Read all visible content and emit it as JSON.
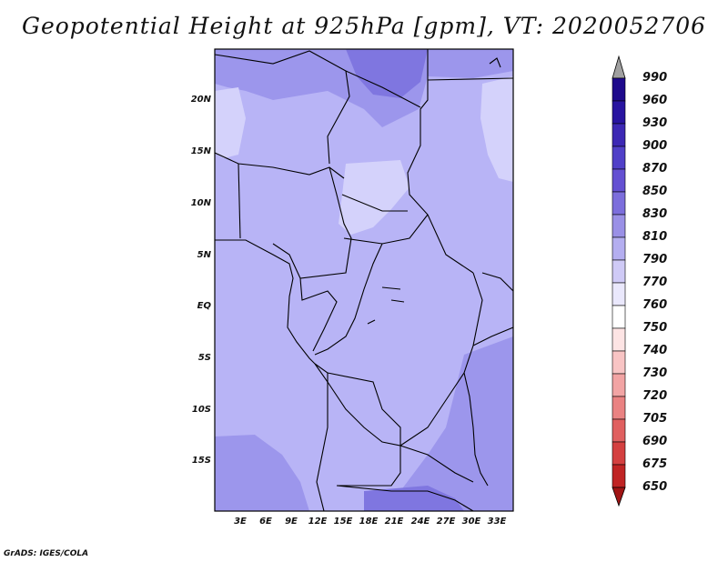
{
  "title": "Geopotential Height at 925hPa [gpm], VT: 2020052706",
  "footer": "GrADS: IGES/COLA",
  "latitude_labels": [
    "20N",
    "15N",
    "10N",
    "5N",
    "EQ",
    "5S",
    "10S",
    "15S"
  ],
  "longitude_labels": [
    "3E",
    "6E",
    "9E",
    "12E",
    "15E",
    "18E",
    "21E",
    "24E",
    "27E",
    "30E",
    "33E"
  ],
  "colorbar": {
    "labels": [
      "990",
      "960",
      "930",
      "900",
      "870",
      "850",
      "830",
      "810",
      "790",
      "770",
      "760",
      "750",
      "740",
      "730",
      "720",
      "705",
      "690",
      "675",
      "650"
    ],
    "colors": [
      "#a0a0a0",
      "#1e0a8c",
      "#2814a0",
      "#3c28b4",
      "#5040c8",
      "#6450d2",
      "#7c6edc",
      "#9a90e6",
      "#b4aef0",
      "#cfcaf6",
      "#eae8fc",
      "#ffffff",
      "#fde4e4",
      "#f8c4c4",
      "#f2a4a4",
      "#ea8282",
      "#e06060",
      "#d44040",
      "#c02424",
      "#a01414",
      "#a01414"
    ]
  },
  "map": {
    "extent": "0E-35E, 20S-24N",
    "field_levels_shown": [
      "870",
      "850",
      "830",
      "810",
      "790"
    ],
    "colors": {
      "background": "#b8b4f6",
      "lighter": "#d4d2fb",
      "darker": "#9c96ec",
      "darkest": "#7f76e0",
      "border": "#000000"
    }
  }
}
